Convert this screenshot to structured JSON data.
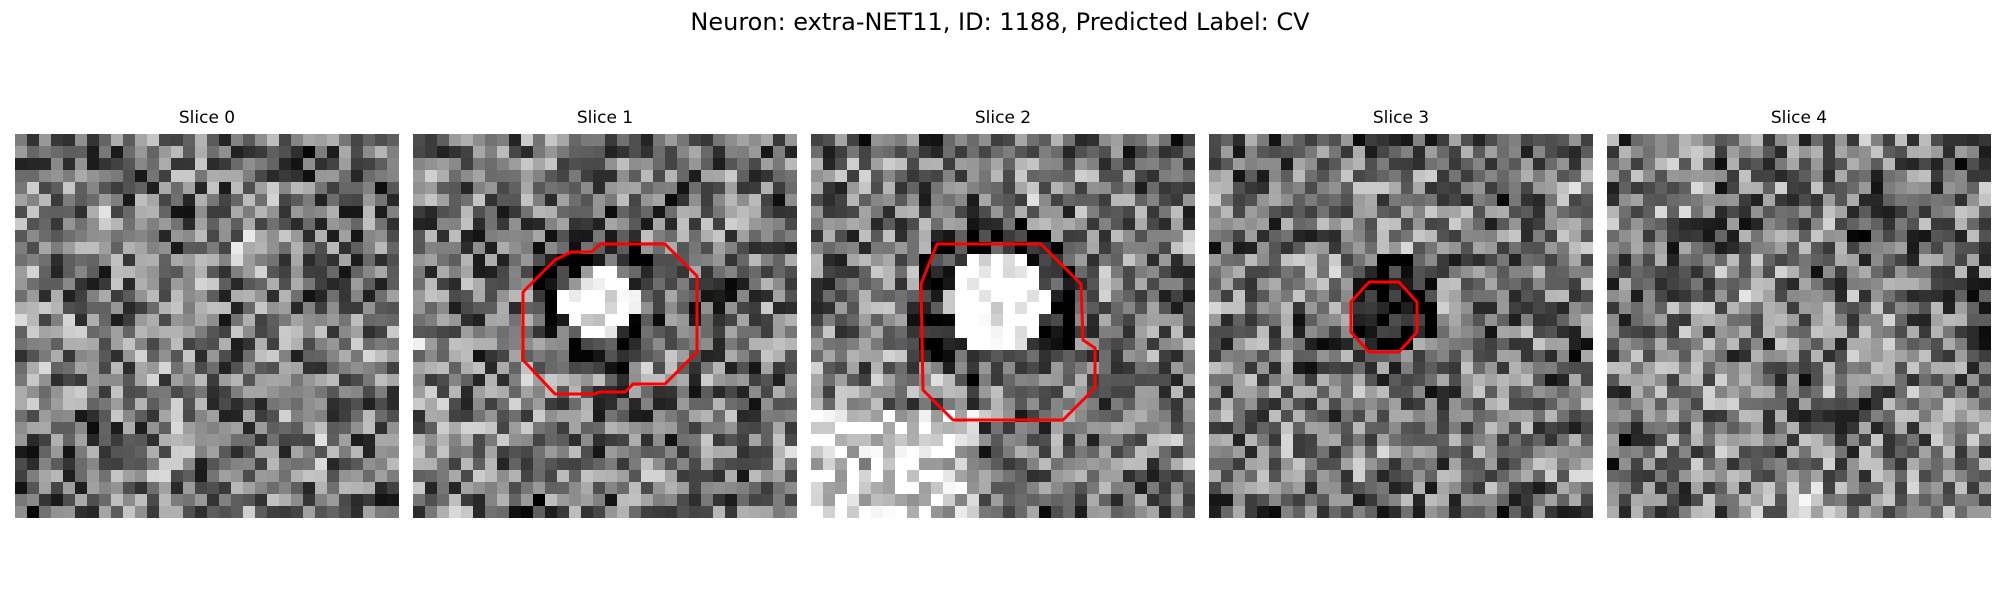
{
  "title": "Neuron: extra-NET11, ID: 1188, Predicted Label: CV",
  "colors": {
    "contour": "#ff0000",
    "background": "#ffffff"
  },
  "panels": [
    {
      "title": "Slice 0",
      "seed": 11,
      "has_contour": false
    },
    {
      "title": "Slice 1",
      "seed": 23,
      "has_contour": true
    },
    {
      "title": "Slice 2",
      "seed": 37,
      "has_contour": true
    },
    {
      "title": "Slice 3",
      "seed": 53,
      "has_contour": true
    },
    {
      "title": "Slice 4",
      "seed": 71,
      "has_contour": false
    }
  ]
}
